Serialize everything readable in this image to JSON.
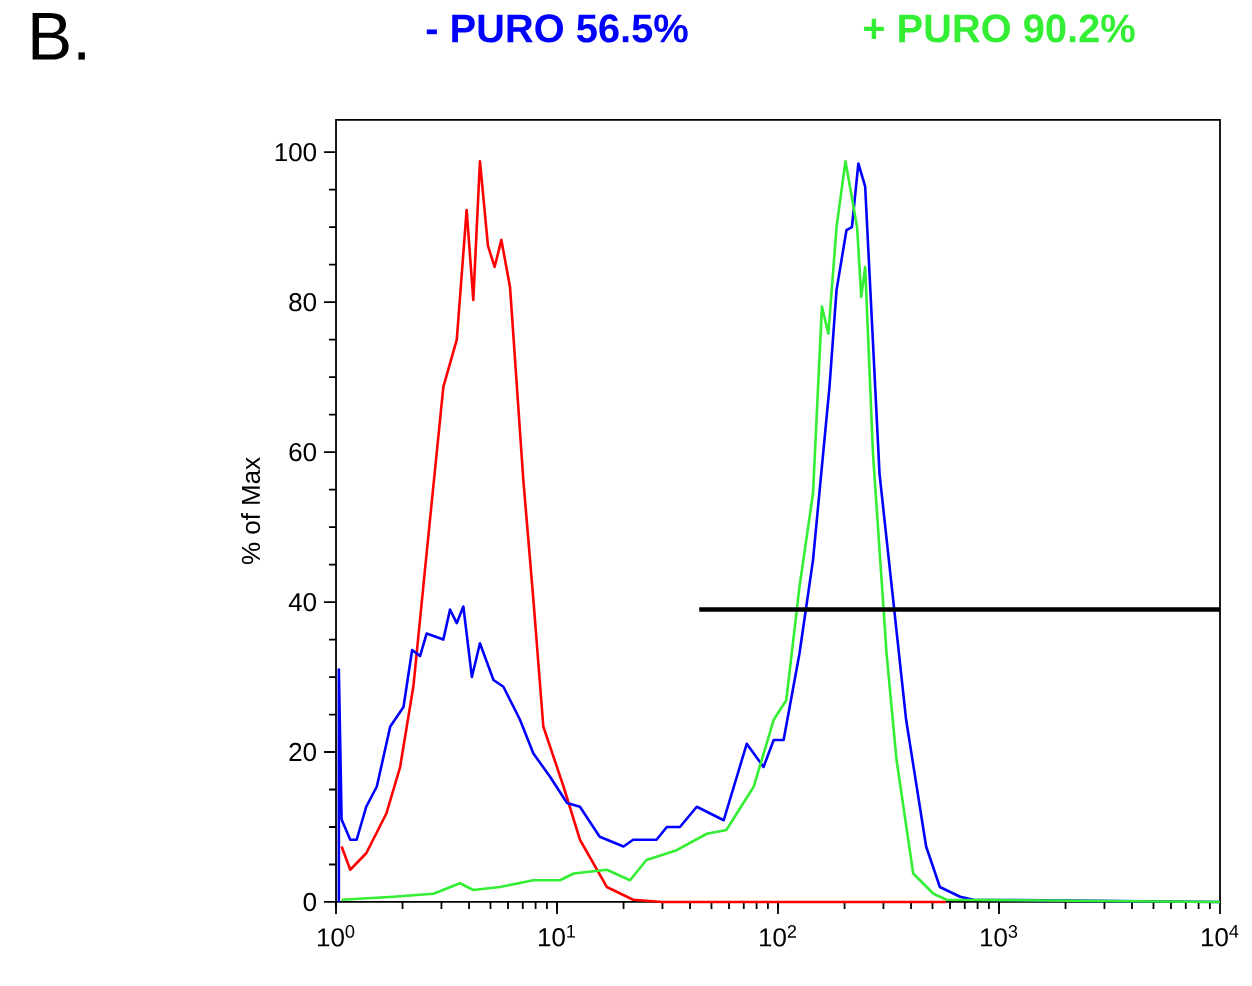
{
  "chart_data": {
    "type": "line",
    "log": "x",
    "xlim": [
      1,
      10000
    ],
    "ylim": [
      0,
      104.3
    ],
    "xticks": [
      {
        "value": 1,
        "label": "10$^{0}$"
      },
      {
        "value": 10,
        "label": "10$^{1}$"
      },
      {
        "value": 100,
        "label": "10$^{2}$"
      },
      {
        "value": 1000,
        "label": "10$^{3}$"
      },
      {
        "value": 10000,
        "label": "10$^{4}$"
      }
    ],
    "yticks": [
      0,
      20,
      40,
      60,
      80,
      100
    ],
    "ylabel": "% of Max",
    "legend": "top",
    "grid": false,
    "marker": "none",
    "line_style": "solid",
    "annotations": [
      "B."
    ],
    "series": [
      {
        "color": "#ff0000",
        "x": [
          1.06,
          1.16,
          1.37,
          1.69,
          1.95,
          2.24,
          2.57,
          3.06,
          3.52,
          3.9,
          4.18,
          4.48,
          4.87,
          5.22,
          5.6,
          6.13,
          7.04,
          7.82,
          8.67,
          10.7,
          12.7,
          16.8,
          22.1,
          30,
          575
        ],
        "values": [
          7.4,
          4.3,
          6.5,
          11.8,
          18,
          28.8,
          46.5,
          68.7,
          75,
          92.3,
          80.3,
          98.8,
          87.5,
          84.7,
          88.3,
          82,
          56.3,
          40.3,
          23.4,
          15.4,
          8.3,
          2,
          0.3,
          0,
          0
        ]
      },
      {
        "name": "- PURO  56.5%",
        "color": "#0000ff",
        "x": [
          1.03,
          1.03,
          1.06,
          1.16,
          1.24,
          1.37,
          1.53,
          1.76,
          2.02,
          2.21,
          2.4,
          2.57,
          3.06,
          3.28,
          3.52,
          3.77,
          4.12,
          4.48,
          5.16,
          5.72,
          6.8,
          7.82,
          9.3,
          11.1,
          12.7,
          15.6,
          20,
          22.1,
          28.2,
          31.4,
          36,
          42.9,
          56.8,
          72.2,
          86,
          95.6,
          106,
          125,
          144,
          171,
          184,
          204,
          216,
          231,
          248,
          288,
          332,
          380,
          468,
          540,
          667,
          765,
          10000
        ],
        "values": [
          0,
          31,
          11,
          8.3,
          8.3,
          12.7,
          15.4,
          23.4,
          26,
          33.6,
          32.8,
          35.8,
          35,
          39,
          37.2,
          39.4,
          30,
          34.5,
          29.6,
          28.7,
          24.3,
          19.8,
          16.7,
          13.2,
          12.7,
          8.7,
          7.4,
          8.3,
          8.3,
          10,
          10,
          12.7,
          10.9,
          21.1,
          18,
          21.6,
          21.6,
          33.1,
          45.6,
          68.7,
          81.6,
          89.6,
          90,
          98.5,
          95.4,
          57.1,
          40.3,
          24.3,
          7.4,
          2,
          0.7,
          0.3,
          0
        ]
      },
      {
        "name": "+ PURO 90.2%",
        "color": "#33ee33",
        "x": [
          1.06,
          1.82,
          2.76,
          3.64,
          4.18,
          5.52,
          7.82,
          10.3,
          11.9,
          16.8,
          21.4,
          25.4,
          34.8,
          47.6,
          58.4,
          77.7,
          95.6,
          109,
          125,
          144,
          158,
          169,
          184,
          202,
          228,
          238,
          248,
          269,
          310,
          344,
          409,
          505,
          579,
          10000
        ],
        "values": [
          0.3,
          0.7,
          1.1,
          2.5,
          1.6,
          2,
          2.9,
          2.9,
          3.8,
          4.3,
          2.9,
          5.6,
          6.9,
          9.1,
          9.6,
          15.4,
          24.3,
          26.9,
          42,
          54.5,
          79.4,
          75.8,
          90,
          98.8,
          90,
          80.7,
          84.7,
          59.8,
          33.1,
          18.9,
          3.8,
          1.1,
          0.3,
          0
        ]
      },
      {
        "color": "#000000",
        "x": [
          44,
          10000
        ],
        "values": [
          39,
          39
        ]
      }
    ]
  }
}
